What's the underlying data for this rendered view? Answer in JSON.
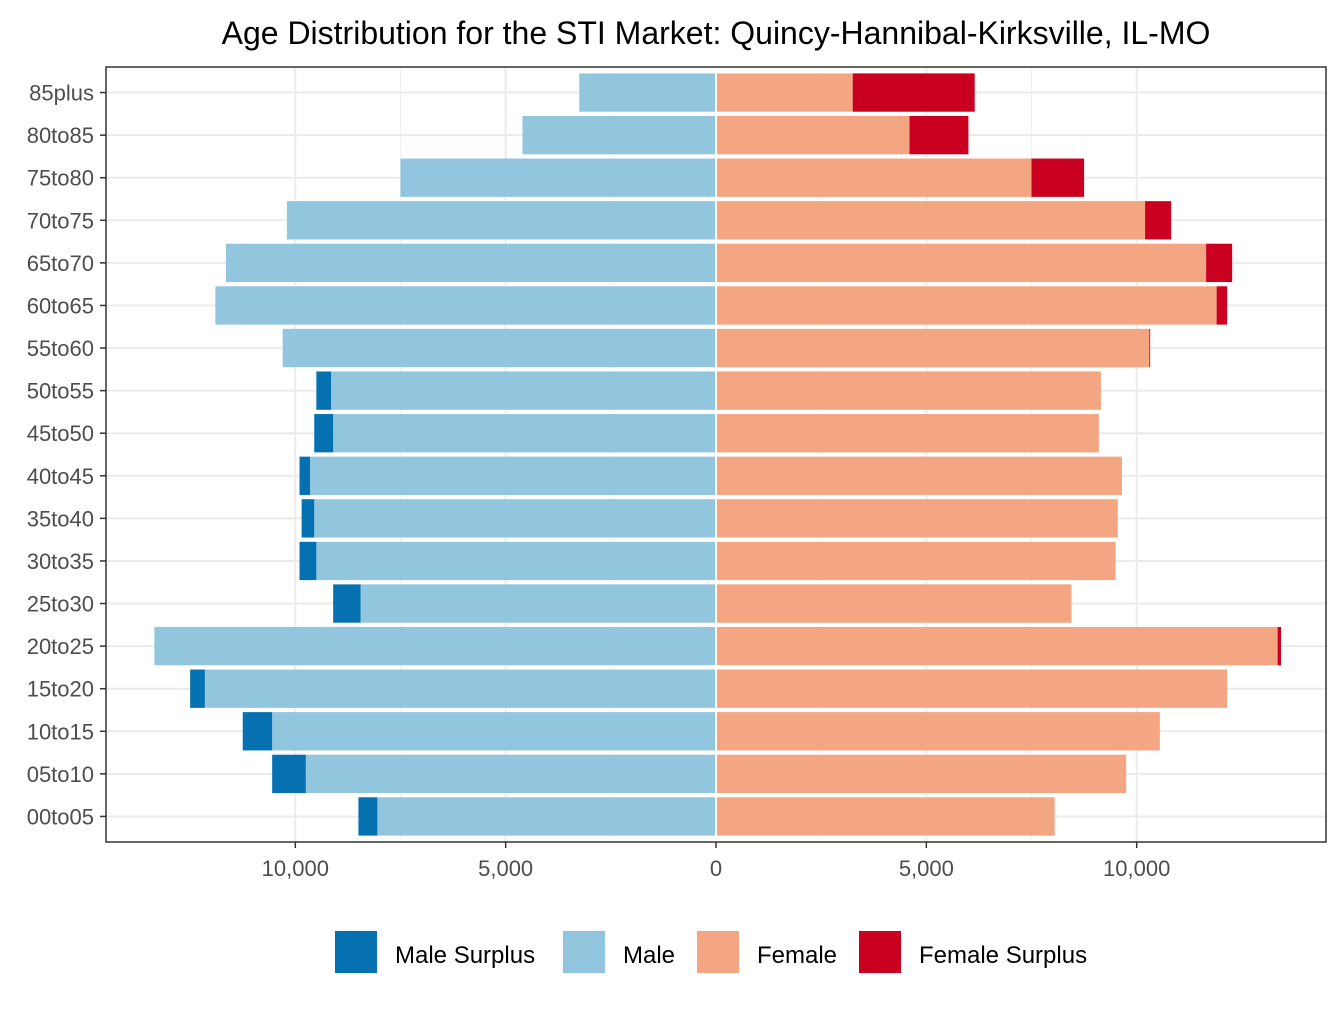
{
  "chart_data": {
    "type": "bar",
    "orientation": "horizontal",
    "layout": "population-pyramid",
    "title": "Age Distribution for the STI Market: Quincy-Hannibal-Kirksville, IL-MO",
    "xlabel": "",
    "ylabel": "",
    "categories": [
      "00to05",
      "05to10",
      "10to15",
      "15to20",
      "20to25",
      "25to30",
      "30to35",
      "35to40",
      "40to45",
      "45to50",
      "50to55",
      "55to60",
      "60to65",
      "65to70",
      "70to75",
      "75to80",
      "80to85",
      "85plus"
    ],
    "series": [
      {
        "name": "Male Surplus",
        "color": "#0571b0",
        "side": "left",
        "values": [
          450,
          800,
          700,
          350,
          0,
          650,
          400,
          300,
          250,
          450,
          350,
          0,
          0,
          0,
          0,
          0,
          0,
          0
        ]
      },
      {
        "name": "Male",
        "color": "#92c5de",
        "side": "left",
        "values": [
          8050,
          9750,
          10550,
          12150,
          13350,
          8450,
          9500,
          9550,
          9650,
          9100,
          9150,
          10300,
          11900,
          11650,
          10200,
          7500,
          4600,
          3250
        ]
      },
      {
        "name": "Female",
        "color": "#f4a582",
        "side": "right",
        "values": [
          8050,
          9750,
          10550,
          12150,
          13350,
          8450,
          9500,
          9550,
          9650,
          9100,
          9150,
          10300,
          11900,
          11650,
          10200,
          7500,
          4600,
          3250
        ]
      },
      {
        "name": "Female Surplus",
        "color": "#ca0020",
        "side": "right",
        "values": [
          0,
          0,
          0,
          0,
          80,
          0,
          0,
          0,
          0,
          0,
          0,
          20,
          250,
          620,
          620,
          1250,
          1400,
          2900
        ]
      }
    ],
    "x_ticks": [
      -10000,
      -5000,
      0,
      5000,
      10000
    ],
    "x_tick_labels": [
      "10,000",
      "5,000",
      "0",
      "5,000",
      "10,000"
    ],
    "xlim": [
      -14500,
      14500
    ],
    "grid": true,
    "legend": {
      "position": "bottom",
      "entries": [
        "Male Surplus",
        "Male",
        "Female",
        "Female Surplus"
      ]
    }
  }
}
